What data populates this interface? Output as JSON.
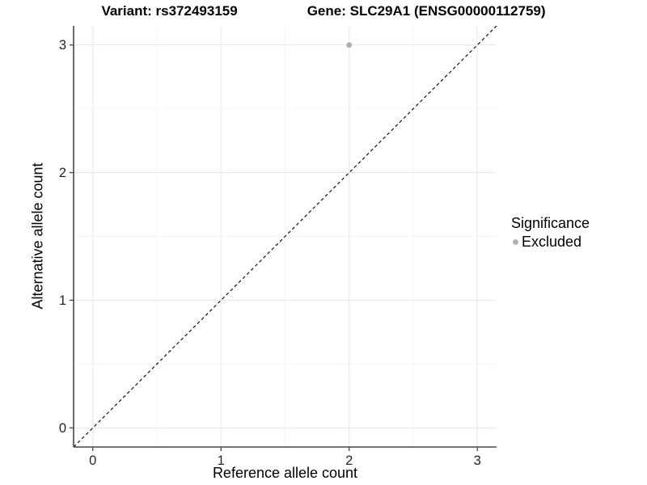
{
  "chart_data": {
    "type": "scatter",
    "title_left": "Variant: rs372493159",
    "title_right": "Gene: SLC29A1 (ENSG00000112759)",
    "xlabel": "Reference allele count",
    "ylabel": "Alternative allele count",
    "xlim": [
      -0.15,
      3.15
    ],
    "ylim": [
      -0.15,
      3.15
    ],
    "x_ticks": [
      0,
      1,
      2,
      3
    ],
    "y_ticks": [
      0,
      1,
      2,
      3
    ],
    "x_tick_labels": [
      "0",
      "1",
      "2",
      "3"
    ],
    "y_tick_labels": [
      "0",
      "1",
      "2",
      "3"
    ],
    "minor_ticks": [
      0.5,
      1.5,
      2.5
    ],
    "grid": true,
    "background_color": "#ffffff",
    "reference_line": {
      "type": "identity y=x",
      "style": "dashed",
      "color": "#000000"
    },
    "series": [
      {
        "name": "Excluded",
        "color": "#b0b0b0",
        "point_radius": 3.4,
        "points": [
          {
            "x": 2,
            "y": 3
          }
        ]
      }
    ],
    "legend": {
      "title": "Significance",
      "position": "right",
      "items": [
        {
          "label": "Excluded",
          "color": "#b0b0b0"
        }
      ]
    }
  }
}
